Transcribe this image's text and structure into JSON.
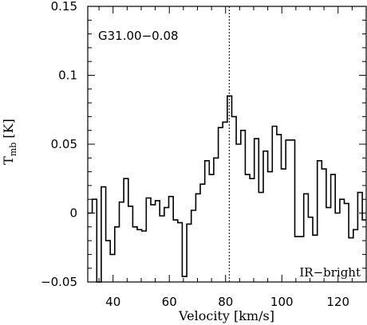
{
  "chart_data": {
    "type": "line",
    "step": true,
    "xlabel": "Velocity [km/s]",
    "ylabel_main": "T",
    "ylabel_sub": "mb",
    "ylabel_unit": " [K]",
    "xlim": [
      31,
      130
    ],
    "ylim": [
      -0.05,
      0.15
    ],
    "xticks": [
      40,
      60,
      80,
      100,
      120
    ],
    "xtick_labels": [
      "40",
      "60",
      "80",
      "100",
      "120"
    ],
    "yticks": [
      -0.05,
      0,
      0.05,
      0.1,
      0.15
    ],
    "ytick_labels": [
      "−0.05",
      "0",
      "0.05",
      "0.1",
      "0.15"
    ],
    "annotations": {
      "source": "G31.00−0.08",
      "category": "IR−bright"
    },
    "reference_line_x": 81.3,
    "channel_width": 1.6,
    "series": [
      {
        "x": [
          31.0,
          32.6,
          34.2,
          35.8,
          37.4,
          39.0,
          40.6,
          42.2,
          43.8,
          45.4,
          47.0,
          48.6,
          50.2,
          51.8,
          53.4,
          55.0,
          56.6,
          58.2,
          59.8,
          61.4,
          63.0,
          64.6,
          66.2,
          67.8,
          69.4,
          71.0,
          72.6,
          74.2,
          75.8,
          77.4,
          79.0,
          80.6,
          82.2,
          83.8,
          85.4,
          87.0,
          88.6,
          90.2,
          91.8,
          93.4,
          95.0,
          96.6,
          98.2,
          99.8,
          101.4,
          103.0,
          104.6,
          106.2,
          107.8,
          109.4,
          111.0,
          112.6,
          114.2,
          115.8,
          117.4,
          119.0,
          120.6,
          122.2,
          123.8,
          125.4,
          127.0,
          128.6
        ],
        "y": [
          0.0,
          0.01,
          -0.05,
          0.019,
          -0.02,
          -0.03,
          -0.01,
          0.008,
          0.025,
          0.005,
          -0.01,
          -0.012,
          -0.013,
          0.011,
          0.006,
          0.009,
          -0.002,
          0.004,
          0.012,
          -0.005,
          -0.007,
          -0.046,
          -0.008,
          0.002,
          0.014,
          0.021,
          0.038,
          0.028,
          0.04,
          0.062,
          0.066,
          0.085,
          0.07,
          0.05,
          0.06,
          0.028,
          0.025,
          0.054,
          0.015,
          0.045,
          0.03,
          0.063,
          0.057,
          0.032,
          0.053,
          0.053,
          -0.017,
          -0.017,
          0.014,
          -0.003,
          -0.016,
          0.038,
          0.032,
          0.004,
          0.028,
          0.0,
          0.01,
          0.007,
          -0.018,
          -0.012,
          0.015,
          -0.005
        ]
      }
    ]
  }
}
